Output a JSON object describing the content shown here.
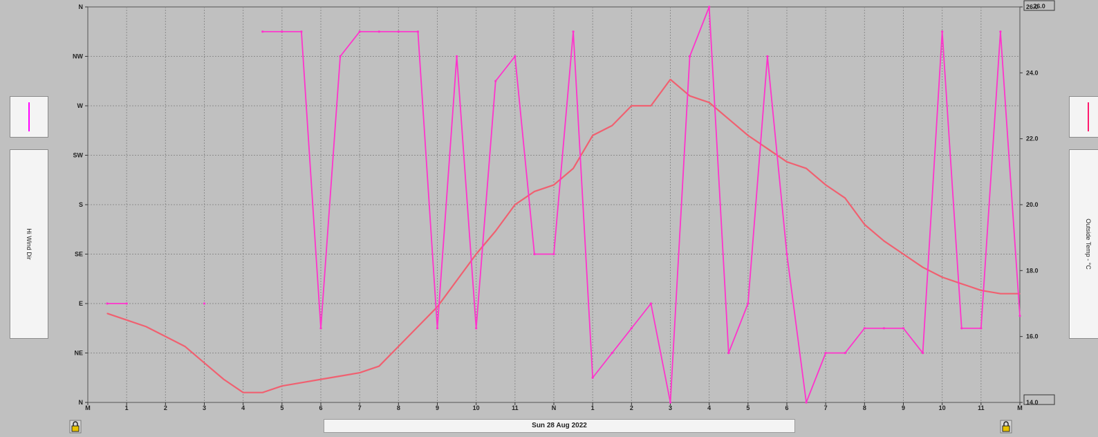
{
  "bottom": {
    "date_label": "Sun 28 Aug 2022"
  },
  "left_panel": {
    "axis_label": "Hi Wind Dir",
    "swatch_color": "#ff00ff"
  },
  "right_panel": {
    "axis_label": "Outside Temp - °C",
    "swatch_color": "#ff1a6e"
  },
  "icons": {
    "left_lock": "lock-icon",
    "right_lock": "lock-icon"
  },
  "chart_data": {
    "type": "line",
    "title": "",
    "xlabel": "Sun 28 Aug 2022",
    "x_tick_labels": [
      "M",
      "1",
      "2",
      "3",
      "4",
      "5",
      "6",
      "7",
      "8",
      "9",
      "10",
      "11",
      "N",
      "1",
      "2",
      "3",
      "4",
      "5",
      "6",
      "7",
      "8",
      "9",
      "10",
      "11",
      "M"
    ],
    "x_unit": "hours from midnight",
    "xlim": [
      0,
      24
    ],
    "left_axis": {
      "label": "Hi Wind Dir",
      "categories": [
        "N",
        "NE",
        "E",
        "SE",
        "S",
        "SW",
        "W",
        "NW",
        "N"
      ],
      "ylim": [
        0,
        8
      ]
    },
    "right_axis": {
      "label": "Outside Temp - °C",
      "tick_labels": [
        "14.0",
        "16.0",
        "18.0",
        "20.0",
        "22.0",
        "24.0",
        "26.0"
      ],
      "ylim": [
        14,
        26
      ]
    },
    "grid": true,
    "series": [
      {
        "name": "Hi Wind Dir",
        "axis": "left",
        "color": "#ff33cc",
        "segments": [
          {
            "x": [
              0.5,
              1.0
            ],
            "y": [
              2,
              2
            ]
          },
          {
            "x": [
              3.0
            ],
            "y": [
              2
            ]
          },
          {
            "x": [
              4.5,
              5.0,
              5.5,
              6.0,
              6.5,
              7.0,
              7.5,
              8.0,
              8.5,
              9.0,
              9.5,
              10.0,
              10.5,
              11.0,
              11.5,
              12.0,
              12.5,
              13.0,
              13.5,
              14.0,
              14.5,
              15.0,
              15.5,
              16.0,
              16.5,
              17.0,
              17.5,
              18.0,
              18.5,
              19.0,
              19.5,
              20.0,
              20.5,
              21.0,
              21.5,
              22.0,
              22.5,
              23.0,
              23.5,
              24.0
            ],
            "y": [
              7.5,
              7.5,
              7.5,
              1.5,
              7.0,
              7.5,
              7.5,
              7.5,
              7.5,
              1.5,
              7.0,
              1.5,
              6.5,
              7.0,
              3.0,
              3.0,
              7.5,
              0.5,
              1.0,
              1.5,
              2.0,
              0.0,
              7.0,
              8.0,
              1.0,
              2.0,
              7.0,
              3.0,
              0.0,
              1.0,
              1.0,
              1.5,
              1.5,
              1.5,
              1.0,
              7.5,
              1.5,
              1.5,
              7.5,
              1.75
            ]
          }
        ]
      },
      {
        "name": "Outside Temp - °C",
        "axis": "right",
        "color": "#f06070",
        "x": [
          0.5,
          1.0,
          1.5,
          2.0,
          2.5,
          3.0,
          3.5,
          4.0,
          4.5,
          5.0,
          5.5,
          6.0,
          6.5,
          7.0,
          7.5,
          8.0,
          8.5,
          9.0,
          9.5,
          10.0,
          10.5,
          11.0,
          11.5,
          12.0,
          12.5,
          13.0,
          13.5,
          14.0,
          14.5,
          15.0,
          15.5,
          16.0,
          16.5,
          17.0,
          17.5,
          18.0,
          18.5,
          19.0,
          19.5,
          20.0,
          20.5,
          21.0,
          21.5,
          22.0,
          22.5,
          23.0,
          23.5,
          24.0
        ],
        "y": [
          16.7,
          16.5,
          16.3,
          16.0,
          15.7,
          15.2,
          14.7,
          14.3,
          14.3,
          14.5,
          14.6,
          14.7,
          14.8,
          14.9,
          15.1,
          15.7,
          16.3,
          16.9,
          17.7,
          18.5,
          19.2,
          20.0,
          20.4,
          20.6,
          21.1,
          22.1,
          22.4,
          23.0,
          23.0,
          23.8,
          23.3,
          23.1,
          22.6,
          22.1,
          21.7,
          21.3,
          21.1,
          20.6,
          20.2,
          19.4,
          18.9,
          18.5,
          18.1,
          17.8,
          17.6,
          17.4,
          17.3,
          17.3
        ]
      }
    ]
  }
}
